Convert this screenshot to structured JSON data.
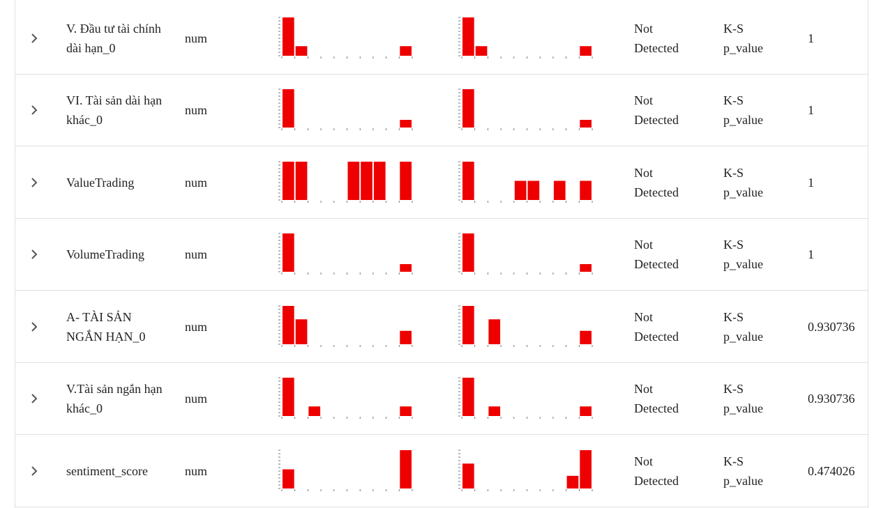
{
  "colors": {
    "bar": "#ee0000",
    "border": "#e0e0e0",
    "text": "#222222",
    "icon": "#555555"
  },
  "icons": {
    "expand": "chevron-right-icon"
  },
  "rows": [
    {
      "feature": "V. Đầu tư tài chính dài hạn_0",
      "type": "num",
      "drift": "Not Detected",
      "stat": "K-S p_value",
      "value": "1",
      "ref_hist": [
        1,
        0.25,
        0,
        0,
        0,
        0,
        0,
        0,
        0,
        0.25
      ],
      "cur_hist": [
        1,
        0.25,
        0,
        0,
        0,
        0,
        0,
        0,
        0,
        0.25
      ]
    },
    {
      "feature": "VI. Tài sản dài hạn khác_0",
      "type": "num",
      "drift": "Not Detected",
      "stat": "K-S p_value",
      "value": "1",
      "ref_hist": [
        1,
        0,
        0,
        0,
        0,
        0,
        0,
        0,
        0,
        0.2
      ],
      "cur_hist": [
        1,
        0,
        0,
        0,
        0,
        0,
        0,
        0,
        0,
        0.2
      ]
    },
    {
      "feature": "ValueTrading",
      "type": "num",
      "drift": "Not Detected",
      "stat": "K-S p_value",
      "value": "1",
      "ref_hist": [
        1,
        1,
        0,
        0,
        0,
        1,
        1,
        1,
        0,
        1
      ],
      "cur_hist": [
        1,
        0,
        0,
        0,
        0.5,
        0.5,
        0,
        0.5,
        0,
        0.5
      ]
    },
    {
      "feature": "VolumeTrading",
      "type": "num",
      "drift": "Not Detected",
      "stat": "K-S p_value",
      "value": "1",
      "ref_hist": [
        1,
        0,
        0,
        0,
        0,
        0,
        0,
        0,
        0,
        0.2
      ],
      "cur_hist": [
        1,
        0,
        0,
        0,
        0,
        0,
        0,
        0,
        0,
        0.2
      ]
    },
    {
      "feature": "A- TÀI SẢN NGẮN HẠN_0",
      "type": "num",
      "drift": "Not Detected",
      "stat": "K-S p_value",
      "value": "0.930736",
      "ref_hist": [
        1,
        0.65,
        0,
        0,
        0,
        0,
        0,
        0,
        0,
        0.35
      ],
      "cur_hist": [
        1,
        0,
        0.65,
        0,
        0,
        0,
        0,
        0,
        0,
        0.35
      ]
    },
    {
      "feature": "V.Tài sản ngắn hạn khác_0",
      "type": "num",
      "drift": "Not Detected",
      "stat": "K-S p_value",
      "value": "0.930736",
      "ref_hist": [
        1,
        0,
        0.25,
        0,
        0,
        0,
        0,
        0,
        0,
        0.25
      ],
      "cur_hist": [
        1,
        0,
        0.25,
        0,
        0,
        0,
        0,
        0,
        0,
        0.25
      ]
    },
    {
      "feature": "sentiment_score",
      "type": "num",
      "drift": "Not Detected",
      "stat": "K-S p_value",
      "value": "0.474026",
      "ref_hist": [
        0.5,
        0,
        0,
        0,
        0,
        0,
        0,
        0,
        0,
        1
      ],
      "cur_hist": [
        0.65,
        0,
        0,
        0,
        0,
        0,
        0,
        0,
        0.33,
        1
      ]
    }
  ]
}
